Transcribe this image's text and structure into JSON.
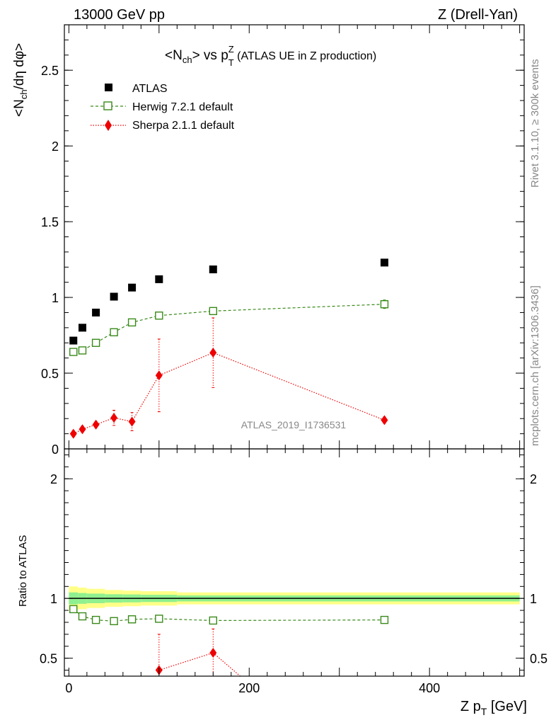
{
  "header": {
    "left": "13000 GeV pp",
    "right": "Z (Drell-Yan)"
  },
  "side_labels": {
    "rivet": "Rivet 3.1.10, ≥ 300k events",
    "mcplots": "mcplots.cern.ch [arXiv:1306.3436]"
  },
  "chart_data": [
    {
      "type": "scatter",
      "panel": "main",
      "title": {
        "main": "<N",
        "sub1": "ch",
        "mid": "> vs p",
        "sup": "Z",
        "sub2": "T",
        "rest": " (ATLAS UE in Z production)"
      },
      "watermark": "ATLAS_2019_I1736531",
      "ylabel": {
        "a": "<N",
        "sub": "ch",
        "b": "/dη dφ>"
      },
      "xlim": [
        -5,
        505
      ],
      "ylim": [
        0,
        2.8
      ],
      "yticks": [
        {
          "v": 0,
          "label": "0"
        },
        {
          "v": 0.5,
          "label": "0.5"
        },
        {
          "v": 1,
          "label": "1"
        },
        {
          "v": 1.5,
          "label": "1.5"
        },
        {
          "v": 2,
          "label": "2"
        },
        {
          "v": 2.5,
          "label": "2.5"
        }
      ],
      "legend_position": "top-left",
      "series": [
        {
          "name": "ATLAS",
          "marker": "square-filled",
          "color": "#000000",
          "x": [
            5,
            15,
            30,
            50,
            70,
            100,
            160,
            350
          ],
          "y": [
            0.715,
            0.8,
            0.9,
            1.005,
            1.065,
            1.12,
            1.185,
            1.23
          ],
          "err": [
            0.01,
            0.01,
            0.012,
            0.012,
            0.012,
            0.012,
            0.014,
            0.014
          ]
        },
        {
          "name": "Herwig 7.2.1 default",
          "marker": "square-open",
          "line": "dashed",
          "color": "#3a8a1a",
          "x": [
            5,
            15,
            30,
            50,
            70,
            100,
            160,
            350
          ],
          "y": [
            0.64,
            0.65,
            0.7,
            0.77,
            0.835,
            0.88,
            0.91,
            0.955
          ],
          "err": [
            0.012,
            0.012,
            0.012,
            0.012,
            0.012,
            0.012,
            0.014,
            0.028
          ]
        },
        {
          "name": "Sherpa 2.1.1 default",
          "marker": "diamond-filled",
          "line": "dotted",
          "color": "#ee0000",
          "x": [
            5,
            15,
            30,
            50,
            70,
            100,
            160,
            350
          ],
          "y": [
            0.1,
            0.13,
            0.16,
            0.205,
            0.18,
            0.485,
            0.635,
            0.19
          ],
          "err": [
            0.02,
            0.02,
            0.02,
            0.05,
            0.06,
            0.24,
            0.23,
            0.02
          ]
        }
      ]
    },
    {
      "type": "scatter",
      "panel": "ratio",
      "ylabel": "Ratio to ATLAS",
      "xlabel": {
        "a": "Z p",
        "sub": "T",
        "b": " [GeV]"
      },
      "xlim": [
        -5,
        505
      ],
      "ylim": [
        0.35,
        2.25
      ],
      "yticks": [
        {
          "v": 0.5,
          "label": "0.5"
        },
        {
          "v": 1,
          "label": "1"
        },
        {
          "v": 2,
          "label": "2"
        }
      ],
      "xticks": [
        {
          "v": 0,
          "label": "0"
        },
        {
          "v": 200,
          "label": "200"
        },
        {
          "v": 400,
          "label": "400"
        }
      ],
      "bands": {
        "x_edges": [
          0,
          10,
          20,
          40,
          60,
          80,
          120,
          500
        ],
        "stat_half_width": [
          0.05,
          0.045,
          0.04,
          0.035,
          0.033,
          0.03,
          0.025
        ],
        "total_half_width": [
          0.1,
          0.09,
          0.08,
          0.07,
          0.065,
          0.06,
          0.05
        ],
        "stat_color": "#8ff08f",
        "total_color": "#ffff88"
      },
      "series": [
        {
          "name": "Herwig 7.2.1 default",
          "x": [
            5,
            15,
            30,
            50,
            70,
            100,
            160,
            350
          ],
          "y": [
            0.91,
            0.85,
            0.82,
            0.81,
            0.825,
            0.83,
            0.815,
            0.82
          ]
        },
        {
          "name": "Sherpa 2.1.1 default",
          "x": [
            100,
            160,
            190
          ],
          "y": [
            0.4,
            0.545,
            0.35
          ],
          "err": [
            0.3,
            0.2,
            0.0
          ]
        }
      ]
    }
  ]
}
